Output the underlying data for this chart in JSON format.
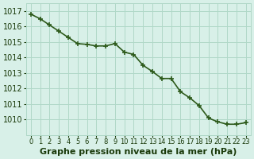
{
  "hours": [
    0,
    1,
    2,
    3,
    4,
    5,
    6,
    7,
    8,
    9,
    10,
    11,
    12,
    13,
    14,
    15,
    16,
    17,
    18,
    19,
    20,
    21,
    22,
    23
  ],
  "pressure": [
    1016.8,
    1016.5,
    1016.1,
    1015.7,
    1015.3,
    1014.9,
    1014.85,
    1014.75,
    1014.75,
    1014.9,
    1014.35,
    1014.2,
    1013.5,
    1013.1,
    1012.65,
    1012.65,
    1011.8,
    1011.4,
    1010.9,
    1010.1,
    1009.85,
    1009.7,
    1009.7,
    1009.8
  ],
  "line_color": "#2d5a1b",
  "marker": "+",
  "background_color": "#d8f0e8",
  "grid_color": "#b0d8c8",
  "ylabel_values": [
    1010,
    1011,
    1012,
    1013,
    1014,
    1015,
    1016,
    1017
  ],
  "xlabel": "Graphe pression niveau de la mer (hPa)",
  "ylim_min": 1009.0,
  "ylim_max": 1017.5,
  "title_color": "#1a3a0a",
  "xlabel_fontsize": 8,
  "tick_fontsize": 7,
  "linewidth": 1.2,
  "markersize": 4
}
